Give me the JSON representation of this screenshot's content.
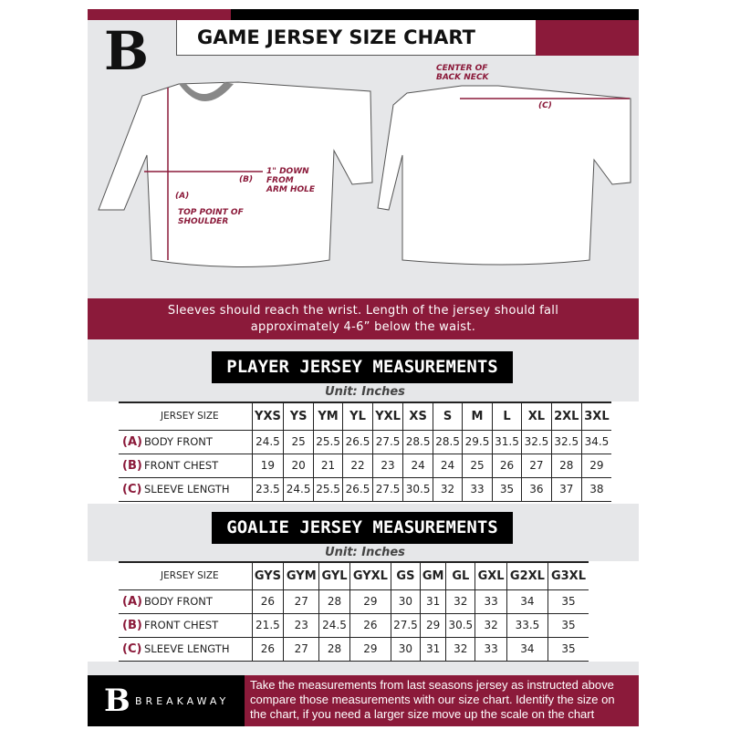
{
  "header": {
    "title": "GAME JERSEY SIZE CHART",
    "logo_letter": "B"
  },
  "diagram": {
    "front_labels": {
      "a": "(A)",
      "a_desc": "TOP POINT OF SHOULDER",
      "b": "(B)",
      "b_desc": "1\" DOWN FROM ARM HOLE"
    },
    "back_labels": {
      "c": "(C)",
      "c_desc": "CENTER OF BACK NECK"
    }
  },
  "banner": {
    "text": "Sleeves should reach the wrist. Length of the jersey should fall approximately 4-6” below the waist."
  },
  "player": {
    "heading": "PLAYER JERSEY MEASUREMENTS",
    "unit": "Unit: Inches",
    "size_label": "JERSEY SIZE",
    "sizes": [
      "YXS",
      "YS",
      "YM",
      "YL",
      "YXL",
      "XS",
      "S",
      "M",
      "L",
      "XL",
      "2XL",
      "3XL"
    ],
    "rows": [
      {
        "letter": "(A)",
        "label": "BODY FRONT",
        "values": [
          "24.5",
          "25",
          "25.5",
          "26.5",
          "27.5",
          "28.5",
          "28.5",
          "29.5",
          "31.5",
          "32.5",
          "32.5",
          "34.5"
        ]
      },
      {
        "letter": "(B)",
        "label": "FRONT CHEST",
        "values": [
          "19",
          "20",
          "21",
          "22",
          "23",
          "24",
          "24",
          "25",
          "26",
          "27",
          "28",
          "29"
        ]
      },
      {
        "letter": "(C)",
        "label": "SLEEVE LENGTH",
        "values": [
          "23.5",
          "24.5",
          "25.5",
          "26.5",
          "27.5",
          "30.5",
          "32",
          "33",
          "35",
          "36",
          "37",
          "38"
        ]
      }
    ]
  },
  "goalie": {
    "heading": "GOALIE JERSEY MEASUREMENTS",
    "unit": "Unit: Inches",
    "size_label": "JERSEY SIZE",
    "sizes": [
      "GYS",
      "GYM",
      "GYL",
      "GYXL",
      "GS",
      "GM",
      "GL",
      "GXL",
      "G2XL",
      "G3XL"
    ],
    "rows": [
      {
        "letter": "(A)",
        "label": "BODY FRONT",
        "values": [
          "26",
          "27",
          "28",
          "29",
          "30",
          "31",
          "32",
          "33",
          "34",
          "35"
        ]
      },
      {
        "letter": "(B)",
        "label": "FRONT CHEST",
        "values": [
          "21.5",
          "23",
          "24.5",
          "26",
          "27.5",
          "29",
          "30.5",
          "32",
          "33.5",
          "35"
        ]
      },
      {
        "letter": "(C)",
        "label": "SLEEVE LENGTH",
        "values": [
          "26",
          "27",
          "28",
          "29",
          "30",
          "31",
          "32",
          "33",
          "34",
          "35"
        ]
      }
    ]
  },
  "footer": {
    "brand": "BREAKAWAY",
    "text": "Take the measurements from last seasons jersey as instructed above compare those measurements  with our size chart. Identify the size on the chart, if you need a larger size move up the scale on the chart"
  },
  "colors": {
    "accent": "#8b1a3a",
    "background": "#e6e7e9"
  }
}
